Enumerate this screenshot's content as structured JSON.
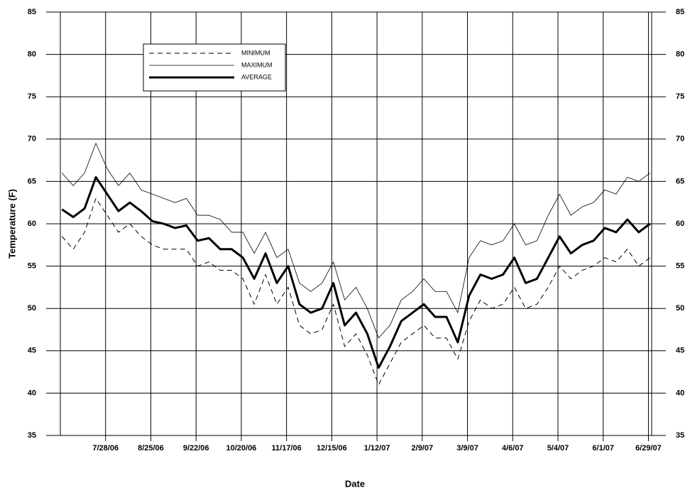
{
  "chart_data": {
    "type": "line",
    "x_label": "Date",
    "y_label": "Temperature  (F)",
    "x": [
      "2006-07-01",
      "2006-07-08",
      "2006-07-15",
      "2006-07-22",
      "2006-07-29",
      "2006-08-05",
      "2006-08-12",
      "2006-08-19",
      "2006-08-26",
      "2006-09-02",
      "2006-09-09",
      "2006-09-16",
      "2006-09-23",
      "2006-09-30",
      "2006-10-07",
      "2006-10-14",
      "2006-10-21",
      "2006-10-28",
      "2006-11-04",
      "2006-11-11",
      "2006-11-18",
      "2006-11-25",
      "2006-12-02",
      "2006-12-09",
      "2006-12-16",
      "2006-12-23",
      "2006-12-30",
      "2007-01-06",
      "2007-01-13",
      "2007-01-20",
      "2007-01-27",
      "2007-02-03",
      "2007-02-10",
      "2007-02-17",
      "2007-02-24",
      "2007-03-03",
      "2007-03-10",
      "2007-03-17",
      "2007-03-24",
      "2007-03-31",
      "2007-04-07",
      "2007-04-14",
      "2007-04-21",
      "2007-04-28",
      "2007-05-05",
      "2007-05-12",
      "2007-05-19",
      "2007-05-26",
      "2007-06-02",
      "2007-06-09",
      "2007-06-16",
      "2007-06-23",
      "2007-06-30"
    ],
    "series": [
      {
        "name": "MINIMUM",
        "color": "#000000",
        "line_style": "dashed",
        "values": [
          58.5,
          57.0,
          59.0,
          63.0,
          61.0,
          59.0,
          60.0,
          58.5,
          57.5,
          57.0,
          57.0,
          57.0,
          55.0,
          55.5,
          54.5,
          54.5,
          53.5,
          50.5,
          54.0,
          50.5,
          52.5,
          48.0,
          47.0,
          47.5,
          50.5,
          45.5,
          47.0,
          44.5,
          41.0,
          43.5,
          46.0,
          47.0,
          48.0,
          46.5,
          46.5,
          44.0,
          48.5,
          51.0,
          50.0,
          50.5,
          52.5,
          50.0,
          50.5,
          52.5,
          55.0,
          53.5,
          54.5,
          55.0,
          56.0,
          55.5,
          57.0,
          55.0,
          56.0
        ]
      },
      {
        "name": "MAXIMUM",
        "color": "#000000",
        "line_style": "thin",
        "values": [
          66.0,
          64.5,
          66.0,
          69.5,
          66.5,
          64.5,
          66.0,
          64.0,
          63.5,
          63.0,
          62.5,
          63.0,
          61.0,
          61.0,
          60.5,
          59.0,
          59.0,
          56.5,
          59.0,
          56.0,
          57.0,
          53.0,
          52.0,
          53.0,
          55.5,
          51.0,
          52.5,
          50.0,
          46.5,
          48.0,
          51.0,
          52.0,
          53.5,
          52.0,
          52.0,
          49.5,
          56.0,
          58.0,
          57.5,
          58.0,
          60.0,
          57.5,
          58.0,
          61.0,
          63.5,
          61.0,
          62.0,
          62.5,
          64.0,
          63.5,
          65.5,
          65.0,
          66.0
        ]
      },
      {
        "name": "AVERAGE",
        "color": "#000000",
        "line_style": "bold",
        "values": [
          61.7,
          60.8,
          61.8,
          65.5,
          63.5,
          61.5,
          62.5,
          61.5,
          60.3,
          60.0,
          59.5,
          59.8,
          58.0,
          58.3,
          57.0,
          57.0,
          56.0,
          53.5,
          56.5,
          53.0,
          55.0,
          50.5,
          49.5,
          50.0,
          53.0,
          48.0,
          49.5,
          47.0,
          43.0,
          45.5,
          48.5,
          49.5,
          50.5,
          49.0,
          49.0,
          46.0,
          51.5,
          54.0,
          53.5,
          54.0,
          56.0,
          53.0,
          53.5,
          56.0,
          58.5,
          56.5,
          57.5,
          58.0,
          59.5,
          59.0,
          60.5,
          59.0,
          60.0
        ]
      }
    ],
    "xlim": [
      "2006-06-30",
      "2007-07-01"
    ],
    "xticks": [
      {
        "value": "2006-07-28",
        "label": "7/28/06"
      },
      {
        "value": "2006-08-25",
        "label": "8/25/06"
      },
      {
        "value": "2006-09-22",
        "label": "9/22/06"
      },
      {
        "value": "2006-10-20",
        "label": "10/20/06"
      },
      {
        "value": "2006-11-17",
        "label": "11/17/06"
      },
      {
        "value": "2006-12-15",
        "label": "12/15/06"
      },
      {
        "value": "2007-01-12",
        "label": "1/12/07"
      },
      {
        "value": "2007-02-09",
        "label": "2/9/07"
      },
      {
        "value": "2007-03-09",
        "label": "3/9/07"
      },
      {
        "value": "2007-04-06",
        "label": "4/6/07"
      },
      {
        "value": "2007-05-04",
        "label": "5/4/07"
      },
      {
        "value": "2007-06-01",
        "label": "6/1/07"
      },
      {
        "value": "2007-06-29",
        "label": "6/29/07"
      }
    ],
    "ylim": [
      35,
      85
    ],
    "yticks": [
      35,
      40,
      45,
      50,
      55,
      60,
      65,
      70,
      75,
      80,
      85
    ],
    "grid": true,
    "legend": "upper left"
  }
}
